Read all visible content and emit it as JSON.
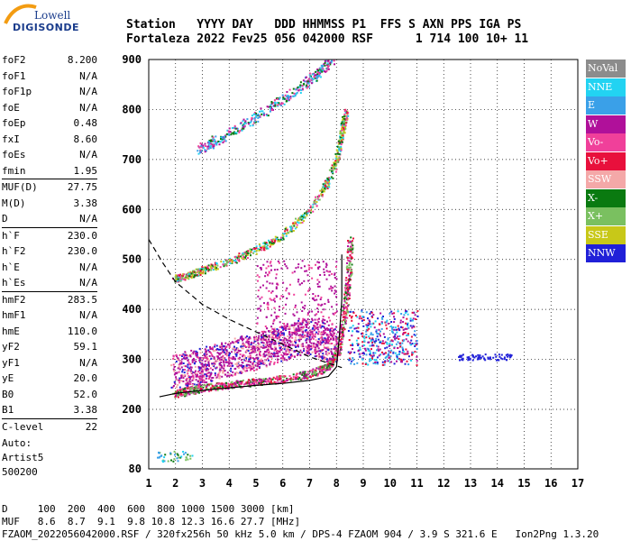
{
  "logo": {
    "line1": "Lowell",
    "line2": "DIGISONDE"
  },
  "header": {
    "line1": "Station   YYYY DAY   DDD HHMMSS P1  FFS S AXN PPS IGA PS",
    "line2": "Fortaleza 2022 Fev25 056 042000 RSF      1 714 100 10+ 11"
  },
  "params": [
    [
      {
        "name": "foF2",
        "value": "8.200"
      },
      {
        "name": "foF1",
        "value": "N/A"
      },
      {
        "name": "foF1p",
        "value": "N/A"
      },
      {
        "name": "foE",
        "value": "N/A"
      },
      {
        "name": "foEp",
        "value": "0.48"
      },
      {
        "name": "fxI",
        "value": "8.60"
      },
      {
        "name": "foEs",
        "value": "N/A"
      },
      {
        "name": "fmin",
        "value": "1.95"
      }
    ],
    [
      {
        "name": "MUF(D)",
        "value": "27.75"
      },
      {
        "name": "M(D)",
        "value": "3.38"
      },
      {
        "name": "D",
        "value": "N/A"
      }
    ],
    [
      {
        "name": "h`F",
        "value": "230.0"
      },
      {
        "name": "h`F2",
        "value": "230.0"
      },
      {
        "name": "h`E",
        "value": "N/A"
      },
      {
        "name": "h`Es",
        "value": "N/A"
      }
    ],
    [
      {
        "name": "hmF2",
        "value": "283.5"
      },
      {
        "name": "hmF1",
        "value": "N/A"
      },
      {
        "name": "hmE",
        "value": "110.0"
      },
      {
        "name": "yF2",
        "value": "59.1"
      },
      {
        "name": "yF1",
        "value": "N/A"
      },
      {
        "name": "yE",
        "value": "20.0"
      },
      {
        "name": "B0",
        "value": "52.0"
      },
      {
        "name": "B1",
        "value": "3.38"
      }
    ],
    [
      {
        "name": "C-level",
        "value": "22"
      }
    ]
  ],
  "auto": {
    "line1": "Auto:",
    "line2": "Artist5",
    "line3": "500200"
  },
  "bottom": {
    "line1": "D     100  200  400  600  800 1000 1500 3000 [km]",
    "line2": "MUF   8.6  8.7  9.1  9.8 10.8 12.3 16.6 27.7 [MHz]",
    "line3": "FZAOM_2022056042000.RSF / 320fx256h 50 kHz 5.0 km / DPS-4 FZAOM 904 / 3.9 S 321.6 E   Ion2Png 1.3.20"
  },
  "legend": [
    {
      "label": "NoVal",
      "color": "#8c8c8c"
    },
    {
      "label": "NNE",
      "color": "#22d3f2"
    },
    {
      "label": "E",
      "color": "#3aa0e8"
    },
    {
      "label": "W",
      "color": "#b0109a"
    },
    {
      "label": "Vo-",
      "color": "#f0409a"
    },
    {
      "label": "Vo+",
      "color": "#e8103c"
    },
    {
      "label": "SSW",
      "color": "#f4a8a8"
    },
    {
      "label": "X-",
      "color": "#0a7a10"
    },
    {
      "label": "X+",
      "color": "#7ac060"
    },
    {
      "label": "SSE",
      "color": "#c8c818"
    },
    {
      "label": "NNW",
      "color": "#2020d8"
    }
  ],
  "chart_data": {
    "type": "scatter",
    "title": "",
    "xlabel": "",
    "ylabel": "",
    "xlim": [
      1,
      17
    ],
    "ylim": [
      80,
      900
    ],
    "xticks": [
      "1",
      "2",
      "3",
      "4",
      "5",
      "6",
      "7",
      "8",
      "9",
      "10",
      "11",
      "12",
      "13",
      "14",
      "15",
      "16",
      "17"
    ],
    "yticks": [
      "80",
      "200",
      "300",
      "400",
      "500",
      "600",
      "700",
      "800",
      "900"
    ],
    "profile_curve": [
      [
        1.4,
        225
      ],
      [
        2,
        232
      ],
      [
        3,
        238
      ],
      [
        4,
        243
      ],
      [
        5,
        248
      ],
      [
        6,
        252
      ],
      [
        7,
        258
      ],
      [
        7.7,
        266
      ],
      [
        8.0,
        285
      ],
      [
        8.1,
        340
      ],
      [
        8.2,
        420
      ],
      [
        8.2,
        510
      ]
    ],
    "dashed_curve": [
      [
        1,
        540
      ],
      [
        1.5,
        495
      ],
      [
        2,
        455
      ],
      [
        3,
        410
      ],
      [
        4,
        380
      ],
      [
        5,
        355
      ],
      [
        6,
        330
      ],
      [
        7,
        305
      ],
      [
        8.2,
        283.5
      ]
    ],
    "f_trace": [
      [
        1.95,
        232
      ],
      [
        2.5,
        238
      ],
      [
        3,
        244
      ],
      [
        4,
        250
      ],
      [
        5,
        256
      ],
      [
        6,
        262
      ],
      [
        7,
        272
      ],
      [
        7.6,
        285
      ],
      [
        8.0,
        310
      ],
      [
        8.2,
        360
      ],
      [
        8.35,
        420
      ],
      [
        8.45,
        480
      ],
      [
        8.5,
        540
      ]
    ],
    "f2_trace": [
      [
        1.95,
        462
      ],
      [
        2.5,
        470
      ],
      [
        3,
        480
      ],
      [
        4,
        498
      ],
      [
        5,
        520
      ],
      [
        6,
        550
      ],
      [
        7,
        600
      ],
      [
        7.6,
        650
      ],
      [
        8.0,
        700
      ],
      [
        8.2,
        760
      ],
      [
        8.35,
        800
      ]
    ],
    "f3_trace": [
      [
        2.8,
        720
      ],
      [
        3.5,
        740
      ],
      [
        4.5,
        770
      ],
      [
        5.5,
        805
      ],
      [
        6.5,
        840
      ],
      [
        7.2,
        870
      ],
      [
        7.8,
        900
      ]
    ],
    "spread_f": [
      [
        2,
        260
      ],
      [
        3,
        275
      ],
      [
        4,
        290
      ],
      [
        5,
        305
      ],
      [
        6,
        320
      ],
      [
        7,
        335
      ],
      [
        8,
        310
      ],
      [
        8.8,
        330
      ],
      [
        9.2,
        360
      ],
      [
        9.6,
        380
      ],
      [
        10.0,
        365
      ],
      [
        10.5,
        360
      ],
      [
        12.6,
        305
      ],
      [
        13.5,
        305
      ],
      [
        14.2,
        305
      ]
    ]
  }
}
